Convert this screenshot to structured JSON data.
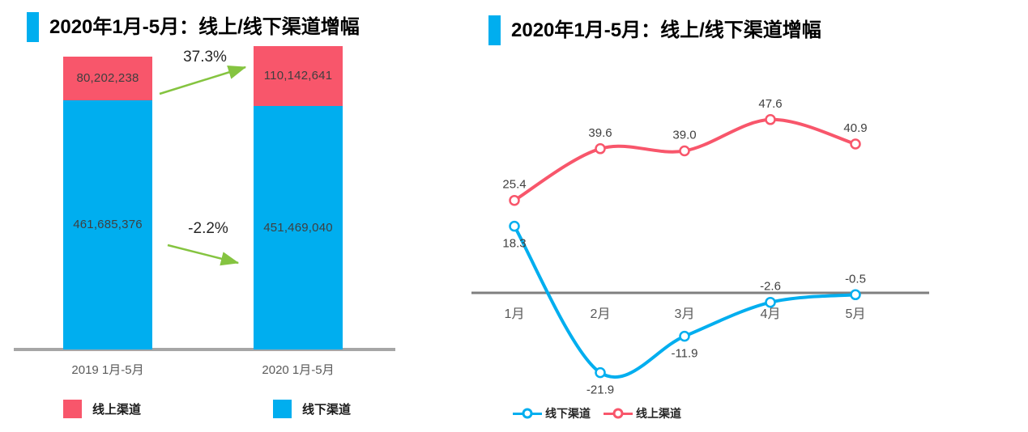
{
  "colors": {
    "online": "#F8566B",
    "offline": "#00AEEF",
    "arrow": "#85C440",
    "bar_axis": "#A6A6A6",
    "line_axis": "#7F7F7F",
    "title_marker": "#00AEEF"
  },
  "left_panel": {
    "title": "2020年1月-5月：线上/线下渠道增幅",
    "legend": [
      {
        "label": "线上渠道",
        "color": "#F8566B"
      },
      {
        "label": "线下渠道",
        "color": "#00AEEF"
      }
    ]
  },
  "right_panel": {
    "title": "2020年1月-5月：线上/线下渠道增幅",
    "legend": [
      {
        "label": "线下渠道",
        "color": "#00AEEF"
      },
      {
        "label": "线上渠道",
        "color": "#F8566B"
      }
    ]
  },
  "chart_data": [
    {
      "id": "channel-totals-stacked-bar",
      "type": "bar",
      "stacked": true,
      "title": "2020年1月-5月：线上/线下渠道增幅",
      "categories": [
        "2019 1月-5月",
        "2020 1月-5月"
      ],
      "series": [
        {
          "name": "线下渠道",
          "color": "#00AEEF",
          "values": [
            461685376,
            451469040
          ]
        },
        {
          "name": "线上渠道",
          "color": "#F8566B",
          "values": [
            80202238,
            110142641
          ]
        }
      ],
      "annotations": [
        {
          "text": "37.3%",
          "series": "线上渠道",
          "direction": "up"
        },
        {
          "text": "-2.2%",
          "series": "线下渠道",
          "direction": "down"
        }
      ],
      "legend_position": "bottom",
      "grid": false
    },
    {
      "id": "channel-growth-line",
      "type": "line",
      "title": "2020年1月-5月：线上/线下渠道增幅",
      "categories": [
        "1月",
        "2月",
        "3月",
        "4月",
        "5月"
      ],
      "series": [
        {
          "name": "线上渠道",
          "color": "#F8566B",
          "values": [
            25.4,
            39.6,
            39.0,
            47.6,
            40.9
          ],
          "label_side": [
            "above",
            "above",
            "above",
            "above",
            "above"
          ]
        },
        {
          "name": "线下渠道",
          "color": "#00AEEF",
          "values": [
            18.3,
            -21.9,
            -11.9,
            -2.6,
            -0.5
          ],
          "label_side": [
            "below",
            "below",
            "below",
            "above",
            "above"
          ]
        }
      ],
      "ylim": [
        -25,
        50
      ],
      "zero_axis": true,
      "grid": false,
      "smooth": true,
      "legend_position": "bottom"
    }
  ]
}
